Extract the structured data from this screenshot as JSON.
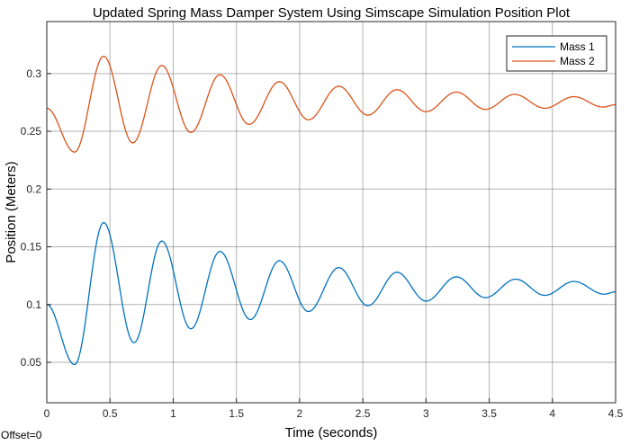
{
  "chart_data": {
    "type": "line",
    "title": "Updated Spring Mass Damper System Using Simscape Simulation Position Plot",
    "xlabel": "Time (seconds)",
    "ylabel": "Position (Meters)",
    "xlim": [
      0,
      4.5
    ],
    "ylim": [
      0.015,
      0.345
    ],
    "xticks": [
      0,
      0.5,
      1,
      1.5,
      2,
      2.5,
      3,
      3.5,
      4,
      4.5
    ],
    "xtick_labels": [
      "0",
      "0.5",
      "1",
      "1.5",
      "2",
      "2.5",
      "3",
      "3.5",
      "4",
      "4.5"
    ],
    "yticks": [
      0.05,
      0.1,
      0.15,
      0.2,
      0.25,
      0.3
    ],
    "ytick_labels": [
      "0.05",
      "0.1",
      "0.15",
      "0.2",
      "0.25",
      "0.3"
    ],
    "grid": true,
    "legend_position": "top-right",
    "series": [
      {
        "name": "Mass 1",
        "color": "#0072BD",
        "points": [
          [
            0,
            0.1
          ],
          [
            0.22,
            0.048
          ],
          [
            0.45,
            0.171
          ],
          [
            0.69,
            0.067
          ],
          [
            0.91,
            0.155
          ],
          [
            1.14,
            0.079
          ],
          [
            1.37,
            0.146
          ],
          [
            1.61,
            0.087
          ],
          [
            1.84,
            0.138
          ],
          [
            2.07,
            0.094
          ],
          [
            2.31,
            0.132
          ],
          [
            2.54,
            0.099
          ],
          [
            2.77,
            0.128
          ],
          [
            3.0,
            0.103
          ],
          [
            3.24,
            0.124
          ],
          [
            3.47,
            0.106
          ],
          [
            3.71,
            0.122
          ],
          [
            3.94,
            0.108
          ],
          [
            4.17,
            0.12
          ],
          [
            4.41,
            0.109
          ],
          [
            4.5,
            0.111
          ]
        ]
      },
      {
        "name": "Mass 2",
        "color": "#D95319",
        "points": [
          [
            0,
            0.27
          ],
          [
            0.22,
            0.232
          ],
          [
            0.45,
            0.315
          ],
          [
            0.68,
            0.24
          ],
          [
            0.91,
            0.307
          ],
          [
            1.14,
            0.249
          ],
          [
            1.37,
            0.299
          ],
          [
            1.6,
            0.256
          ],
          [
            1.84,
            0.293
          ],
          [
            2.07,
            0.26
          ],
          [
            2.31,
            0.289
          ],
          [
            2.54,
            0.264
          ],
          [
            2.77,
            0.286
          ],
          [
            3.0,
            0.267
          ],
          [
            3.24,
            0.284
          ],
          [
            3.47,
            0.269
          ],
          [
            3.7,
            0.282
          ],
          [
            3.94,
            0.27
          ],
          [
            4.17,
            0.28
          ],
          [
            4.4,
            0.271
          ],
          [
            4.5,
            0.273
          ]
        ]
      }
    ]
  },
  "footer": {
    "offset_label": "Offset=0"
  }
}
